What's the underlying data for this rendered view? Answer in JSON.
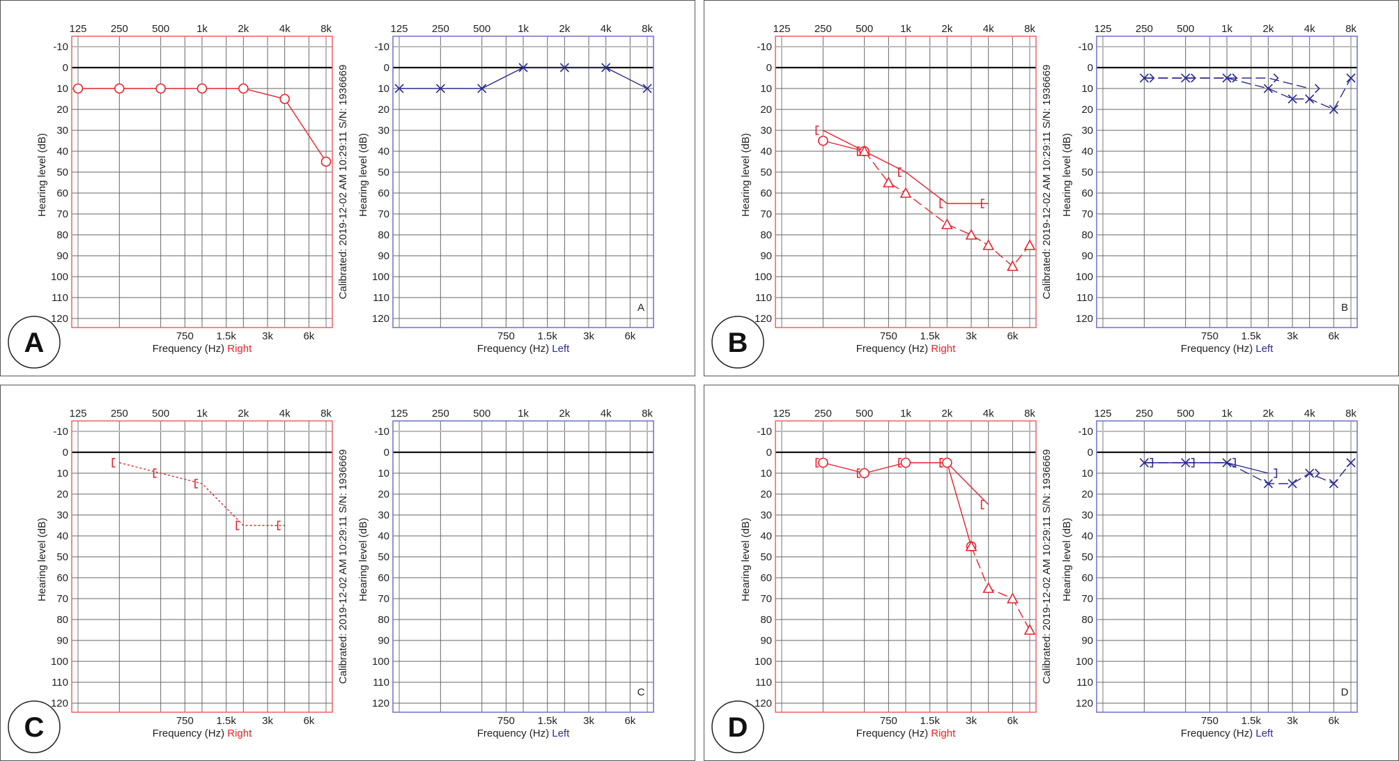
{
  "labels": {
    "ylabel": "Hearing level (dB)",
    "xlabel": "Frequency (Hz)",
    "right": "Right",
    "left": "Left",
    "calibration": "Calibrated: 2019-12-02 AM 10:29:11  S/N: 1936669",
    "top_ticks": [
      "125",
      "250",
      "500",
      "1k",
      "2k",
      "4k",
      "8k"
    ],
    "bottom_ticks": [
      "750",
      "1.5k",
      "3k",
      "6k"
    ],
    "y_ticks": [
      "-10",
      "0",
      "10",
      "20",
      "30",
      "40",
      "50",
      "60",
      "70",
      "80",
      "90",
      "100",
      "110",
      "120"
    ]
  },
  "colors": {
    "right": "#e8202a",
    "left": "#2b2a8f",
    "right_border": "#f06060",
    "left_border": "#6e6ecc"
  },
  "chart_data": [
    {
      "type": "line",
      "panel": "A",
      "xlabel": "Frequency (Hz)",
      "ylabel": "Hearing level (dB)",
      "ylim": [
        -10,
        120
      ],
      "xscale": "log2",
      "right": {
        "series": [
          {
            "name": "air-unmasked",
            "symbol": "circle",
            "line": "solid",
            "points": [
              [
                125,
                10
              ],
              [
                250,
                10
              ],
              [
                500,
                10
              ],
              [
                1000,
                10
              ],
              [
                2000,
                10
              ],
              [
                4000,
                15
              ],
              [
                8000,
                45
              ]
            ]
          }
        ]
      },
      "left": {
        "series": [
          {
            "name": "air-unmasked",
            "symbol": "x",
            "line": "solid",
            "points": [
              [
                125,
                10
              ],
              [
                250,
                10
              ],
              [
                500,
                10
              ],
              [
                1000,
                0
              ],
              [
                2000,
                0
              ],
              [
                4000,
                0
              ],
              [
                8000,
                10
              ]
            ]
          }
        ]
      }
    },
    {
      "type": "line",
      "panel": "B",
      "xlabel": "Frequency (Hz)",
      "ylabel": "Hearing level (dB)",
      "ylim": [
        -10,
        120
      ],
      "xscale": "log2",
      "right": {
        "series": [
          {
            "name": "bone-masked",
            "symbol": "lbracket",
            "line": "solid",
            "points": [
              [
                250,
                30
              ],
              [
                500,
                40
              ],
              [
                1000,
                50
              ],
              [
                2000,
                65
              ],
              [
                4000,
                65
              ]
            ]
          },
          {
            "name": "air-unmasked",
            "symbol": "circle",
            "line": "solid",
            "points": [
              [
                250,
                35
              ],
              [
                500,
                40
              ]
            ]
          },
          {
            "name": "air-masked",
            "symbol": "triangle",
            "line": "dashed",
            "points": [
              [
                500,
                40
              ],
              [
                750,
                55
              ],
              [
                1000,
                60
              ],
              [
                2000,
                75
              ],
              [
                3000,
                80
              ],
              [
                4000,
                85
              ],
              [
                6000,
                95
              ],
              [
                8000,
                85
              ]
            ]
          }
        ]
      },
      "left": {
        "series": [
          {
            "name": "bone-unmasked",
            "symbol": "gt",
            "line": "dashed",
            "points": [
              [
                250,
                5
              ],
              [
                500,
                5
              ],
              [
                1000,
                5
              ],
              [
                2000,
                5
              ],
              [
                4000,
                10
              ]
            ]
          },
          {
            "name": "air-unmasked",
            "symbol": "x",
            "line": "dashed",
            "points": [
              [
                250,
                5
              ],
              [
                500,
                5
              ],
              [
                1000,
                5
              ],
              [
                2000,
                10
              ],
              [
                3000,
                15
              ],
              [
                4000,
                15
              ],
              [
                6000,
                20
              ],
              [
                8000,
                5
              ]
            ]
          }
        ]
      }
    },
    {
      "type": "line",
      "panel": "C",
      "xlabel": "Frequency (Hz)",
      "ylabel": "Hearing level (dB)",
      "ylim": [
        -10,
        120
      ],
      "xscale": "log2",
      "right": {
        "series": [
          {
            "name": "bone-masked",
            "symbol": "lbracket",
            "line": "dotted",
            "points": [
              [
                250,
                5
              ],
              [
                500,
                10
              ],
              [
                1000,
                15
              ],
              [
                2000,
                35
              ],
              [
                4000,
                35
              ]
            ]
          }
        ]
      },
      "left": {
        "series": []
      }
    },
    {
      "type": "line",
      "panel": "D",
      "xlabel": "Frequency (Hz)",
      "ylabel": "Hearing level (dB)",
      "ylim": [
        -10,
        120
      ],
      "xscale": "log2",
      "right": {
        "series": [
          {
            "name": "bone-masked",
            "symbol": "lbracket",
            "line": "none",
            "points": [
              [
                250,
                5
              ],
              [
                500,
                10
              ],
              [
                1000,
                5
              ],
              [
                2000,
                5
              ]
            ]
          },
          {
            "name": "bone-masked-4k",
            "symbol": "lbracket",
            "line": "solid",
            "points": [
              [
                2000,
                5
              ],
              [
                4000,
                25
              ]
            ]
          },
          {
            "name": "air-unmasked",
            "symbol": "circle",
            "line": "solid",
            "points": [
              [
                250,
                5
              ],
              [
                500,
                10
              ],
              [
                1000,
                5
              ],
              [
                2000,
                5
              ],
              [
                3000,
                45
              ]
            ]
          },
          {
            "name": "air-masked",
            "symbol": "triangle",
            "line": "dashed",
            "points": [
              [
                3000,
                45
              ],
              [
                4000,
                65
              ],
              [
                6000,
                70
              ],
              [
                8000,
                85
              ]
            ]
          }
        ]
      },
      "left": {
        "series": [
          {
            "name": "bone-masked",
            "symbol": "rbracket",
            "line": "solid",
            "points": [
              [
                250,
                5
              ],
              [
                500,
                5
              ],
              [
                1000,
                5
              ],
              [
                2000,
                10
              ]
            ]
          },
          {
            "name": "air-unmasked",
            "symbol": "x",
            "line": "dashed",
            "points": [
              [
                250,
                5
              ],
              [
                500,
                5
              ],
              [
                1000,
                5
              ],
              [
                2000,
                15
              ],
              [
                3000,
                15
              ],
              [
                4000,
                10
              ],
              [
                6000,
                15
              ],
              [
                8000,
                5
              ]
            ]
          },
          {
            "name": "bone-unmasked",
            "symbol": "gt",
            "line": "none",
            "points": [
              [
                4000,
                10
              ]
            ]
          }
        ]
      }
    }
  ]
}
